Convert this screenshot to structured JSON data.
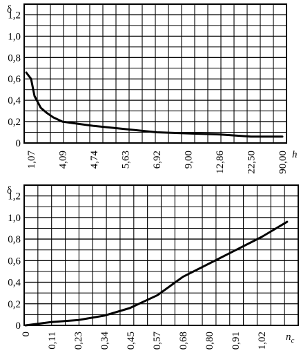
{
  "chart_data": [
    {
      "type": "line",
      "ylabel": "δ",
      "xlabel": "h",
      "ylim": [
        0,
        1.3
      ],
      "y_ticks": [
        "0",
        "0,2",
        "0,4",
        "0,6",
        "0,8",
        "1,0",
        "1,2"
      ],
      "x_tick_labels": [
        "1,07",
        "4,09",
        "4,74",
        "5,63",
        "6,92",
        "9,00",
        "12,86",
        "22,50",
        "90,00"
      ],
      "grid": true,
      "series": [
        {
          "points": [
            {
              "x": 1.0,
              "y": 0.66
            },
            {
              "x": 1.07,
              "y": 0.6
            },
            {
              "x": 1.4,
              "y": 0.44
            },
            {
              "x": 2.0,
              "y": 0.33
            },
            {
              "x": 2.6,
              "y": 0.28
            },
            {
              "x": 3.2,
              "y": 0.24
            },
            {
              "x": 4.09,
              "y": 0.2
            },
            {
              "x": 4.74,
              "y": 0.16
            },
            {
              "x": 5.63,
              "y": 0.13
            },
            {
              "x": 6.92,
              "y": 0.1
            },
            {
              "x": 9.0,
              "y": 0.09
            },
            {
              "x": 12.86,
              "y": 0.08
            },
            {
              "x": 22.5,
              "y": 0.06
            },
            {
              "x": 90.0,
              "y": 0.06
            }
          ]
        }
      ]
    },
    {
      "type": "line",
      "ylabel": "δ",
      "xlabel": "n",
      "xlabel_sub": "c",
      "ylim": [
        0,
        1.3
      ],
      "y_ticks": [
        "0",
        "0,2",
        "0,4",
        "0,6",
        "0,8",
        "1,0",
        "1,2"
      ],
      "x_tick_labels": [
        "0",
        "0,11",
        "0,23",
        "0,34",
        "0,45",
        "0,57",
        "0,68",
        "0,80",
        "0,91",
        "1,02"
      ],
      "grid": true,
      "series": [
        {
          "points": [
            {
              "x": 0.0,
              "y": 0.0
            },
            {
              "x": 0.11,
              "y": 0.03
            },
            {
              "x": 0.23,
              "y": 0.05
            },
            {
              "x": 0.34,
              "y": 0.09
            },
            {
              "x": 0.45,
              "y": 0.16
            },
            {
              "x": 0.57,
              "y": 0.28
            },
            {
              "x": 0.68,
              "y": 0.45
            },
            {
              "x": 0.8,
              "y": 0.58
            },
            {
              "x": 0.91,
              "y": 0.7
            },
            {
              "x": 1.02,
              "y": 0.82
            },
            {
              "x": 1.13,
              "y": 0.96
            }
          ]
        }
      ]
    }
  ]
}
